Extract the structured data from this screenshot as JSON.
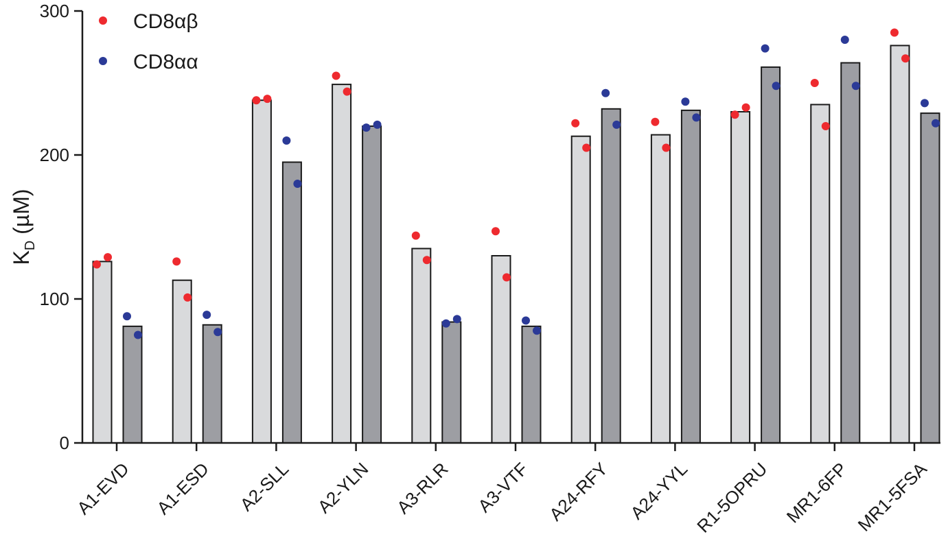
{
  "chart_data": {
    "type": "bar",
    "categories": [
      "A1-EVD",
      "A1-ESD",
      "A2-SLL",
      "A2-YLN",
      "A3-RLR",
      "A3-VTF",
      "A24-RFY",
      "A24-YYL",
      "R1-5OPRU",
      "MR1-6FP",
      "MR1-5FSA"
    ],
    "ylabel_main": "K",
    "ylabel_sub": "D",
    "ylabel_unit": " (µM)",
    "ylim": [
      0,
      300
    ],
    "yticks": [
      0,
      100,
      200,
      300
    ],
    "grid": false,
    "legend_position": "top-left",
    "series": [
      {
        "name": "CD8αβ",
        "bar_color": "#d9dadc",
        "point_color": "#ee2a2f",
        "means": [
          126,
          113,
          238,
          249,
          135,
          130,
          213,
          214,
          230,
          235,
          276
        ],
        "points": [
          [
            124,
            129
          ],
          [
            126,
            101
          ],
          [
            238,
            239
          ],
          [
            255,
            244
          ],
          [
            144,
            127
          ],
          [
            147,
            115
          ],
          [
            222,
            205
          ],
          [
            223,
            205
          ],
          [
            228,
            233
          ],
          [
            250,
            220
          ],
          [
            285,
            267
          ]
        ]
      },
      {
        "name": "CD8αα",
        "bar_color": "#9d9ea3",
        "point_color": "#2b3a97",
        "means": [
          81,
          82,
          195,
          220,
          84,
          81,
          232,
          231,
          261,
          264,
          229
        ],
        "points": [
          [
            88,
            75
          ],
          [
            89,
            77
          ],
          [
            210,
            180
          ],
          [
            219,
            221
          ],
          [
            83,
            86
          ],
          [
            85,
            78
          ],
          [
            243,
            221
          ],
          [
            237,
            226
          ],
          [
            274,
            248
          ],
          [
            280,
            248
          ],
          [
            236,
            222
          ]
        ]
      }
    ]
  }
}
